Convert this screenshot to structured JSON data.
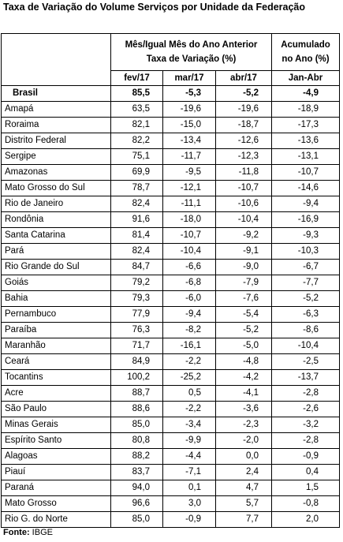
{
  "title": "Taxa de Variação do Volume Serviços por Unidade da Federação",
  "header": {
    "group_label_line1": "Mês/Igual Mês do Ano Anterior",
    "group_label_line2": "Taxa de Variação (%)",
    "acc_label_line1": "Acumulado",
    "acc_label_line2": "no Ano (%)",
    "cols": [
      "fev/17",
      "mar/17",
      "abr/17",
      "Jan-Abr"
    ]
  },
  "brasil": {
    "name": "Brasil",
    "values": [
      "85,5",
      "-5,3",
      "-5,2",
      "-4,9"
    ]
  },
  "rows": [
    {
      "name": "Amapá",
      "values": [
        "63,5",
        "-19,6",
        "-19,6",
        "-18,9"
      ]
    },
    {
      "name": "Roraima",
      "values": [
        "82,1",
        "-15,0",
        "-18,7",
        "-17,3"
      ]
    },
    {
      "name": "Distrito Federal",
      "values": [
        "82,2",
        "-13,4",
        "-12,6",
        "-13,6"
      ]
    },
    {
      "name": "Sergipe",
      "values": [
        "75,1",
        "-11,7",
        "-12,3",
        "-13,1"
      ]
    },
    {
      "name": "Amazonas",
      "values": [
        "69,9",
        "-9,5",
        "-11,8",
        "-10,7"
      ]
    },
    {
      "name": "Mato Grosso do Sul",
      "values": [
        "78,7",
        "-12,1",
        "-10,7",
        "-14,6"
      ]
    },
    {
      "name": "Rio de Janeiro",
      "values": [
        "82,4",
        "-11,1",
        "-10,6",
        "-9,4"
      ]
    },
    {
      "name": "Rondônia",
      "values": [
        "91,6",
        "-18,0",
        "-10,4",
        "-16,9"
      ]
    },
    {
      "name": "Santa Catarina",
      "values": [
        "81,4",
        "-10,7",
        "-9,2",
        "-9,3"
      ]
    },
    {
      "name": "Pará",
      "values": [
        "82,4",
        "-10,4",
        "-9,1",
        "-10,3"
      ]
    },
    {
      "name": "Rio Grande do Sul",
      "values": [
        "84,7",
        "-6,6",
        "-9,0",
        "-6,7"
      ]
    },
    {
      "name": "Goiás",
      "values": [
        "79,2",
        "-6,8",
        "-7,9",
        "-7,7"
      ]
    },
    {
      "name": "Bahia",
      "values": [
        "79,3",
        "-6,0",
        "-7,6",
        "-5,2"
      ]
    },
    {
      "name": "Pernambuco",
      "values": [
        "77,9",
        "-9,4",
        "-5,4",
        "-6,3"
      ]
    },
    {
      "name": "Paraíba",
      "values": [
        "76,3",
        "-8,2",
        "-5,2",
        "-8,6"
      ]
    },
    {
      "name": "Maranhão",
      "values": [
        "71,7",
        "-16,1",
        "-5,0",
        "-10,4"
      ]
    },
    {
      "name": "Ceará",
      "values": [
        "84,9",
        "-2,2",
        "-4,8",
        "-2,5"
      ]
    },
    {
      "name": "Tocantins",
      "values": [
        "100,2",
        "-25,2",
        "-4,2",
        "-13,7"
      ]
    },
    {
      "name": "Acre",
      "values": [
        "88,7",
        "0,5",
        "-4,1",
        "-2,8"
      ]
    },
    {
      "name": "São Paulo",
      "values": [
        "88,6",
        "-2,2",
        "-3,6",
        "-2,6"
      ]
    },
    {
      "name": "Minas Gerais",
      "values": [
        "85,0",
        "-3,4",
        "-2,3",
        "-3,2"
      ]
    },
    {
      "name": "Espírito Santo",
      "values": [
        "80,8",
        "-9,9",
        "-2,0",
        "-2,8"
      ]
    },
    {
      "name": "Alagoas",
      "values": [
        "88,2",
        "-4,4",
        "0,0",
        "-0,9"
      ]
    },
    {
      "name": "Piauí",
      "values": [
        "83,7",
        "-7,1",
        "2,4",
        "0,4"
      ]
    },
    {
      "name": "Paraná",
      "values": [
        "94,0",
        "0,1",
        "4,7",
        "1,5"
      ]
    },
    {
      "name": "Mato Grosso",
      "values": [
        "96,6",
        "3,0",
        "5,7",
        "-0,8"
      ]
    },
    {
      "name": "Rio G. do Norte",
      "values": [
        "85,0",
        "-0,9",
        "7,7",
        "2,0"
      ]
    }
  ],
  "source_label": "Fonte:",
  "source_value": "IBGE"
}
